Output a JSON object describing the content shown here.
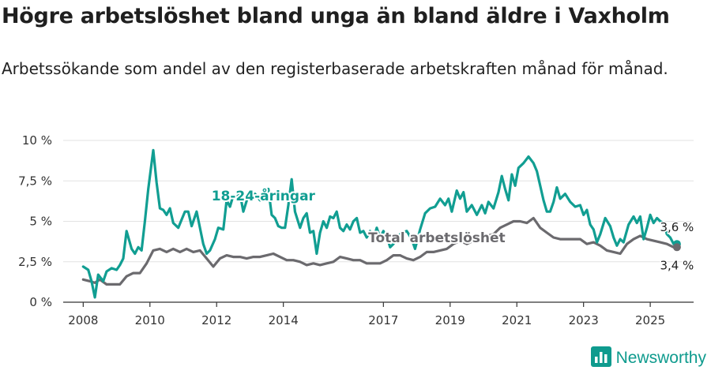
{
  "header": {
    "title": "Högre arbetslöshet bland unga än bland äldre i Vaxholm",
    "subtitle": "Arbetssökande som andel av den registerbaserade arbetskraften månad för månad."
  },
  "brand": {
    "name": "Newsworthy",
    "icon": "bar-chart-logo-icon"
  },
  "colors": {
    "youth": "#119e92",
    "total": "#6b6a6e",
    "grid": "#e2e2e2",
    "axis": "#333333"
  },
  "chart_data": {
    "type": "line",
    "title": "Högre arbetslöshet bland unga än bland äldre i Vaxholm",
    "subtitle": "Arbetssökande som andel av den registerbaserade arbetskraften månad för månad.",
    "xlim": [
      2007.4,
      2026.3
    ],
    "ylim": [
      0,
      10
    ],
    "yticks": [
      0,
      2.5,
      5,
      7.5,
      10
    ],
    "ytick_labels": [
      "0 %",
      "2,5 %",
      "5 %",
      "7,5 %",
      "10 %"
    ],
    "xticks": [
      2008,
      2010,
      2012,
      2014,
      2017,
      2019,
      2021,
      2023,
      2025
    ],
    "xtick_labels": [
      "2008",
      "2010",
      "2012",
      "2014",
      "2017",
      "2019",
      "2021",
      "2023",
      "2025"
    ],
    "grid": "horizontal",
    "series": [
      {
        "name": "18-24-åringar",
        "label_x": 2013.4,
        "label_y": 6.3,
        "end_label": "3,6 %",
        "points": [
          [
            2008.0,
            2.2
          ],
          [
            2008.15,
            2.0
          ],
          [
            2008.25,
            1.3
          ],
          [
            2008.35,
            0.3
          ],
          [
            2008.45,
            1.7
          ],
          [
            2008.6,
            1.3
          ],
          [
            2008.7,
            1.9
          ],
          [
            2008.85,
            2.1
          ],
          [
            2009.0,
            2.0
          ],
          [
            2009.1,
            2.3
          ],
          [
            2009.2,
            2.7
          ],
          [
            2009.3,
            4.4
          ],
          [
            2009.45,
            3.3
          ],
          [
            2009.55,
            3.0
          ],
          [
            2009.65,
            3.4
          ],
          [
            2009.75,
            3.2
          ],
          [
            2009.85,
            5.0
          ],
          [
            2009.95,
            7.0
          ],
          [
            2010.1,
            9.4
          ],
          [
            2010.2,
            7.4
          ],
          [
            2010.3,
            5.8
          ],
          [
            2010.4,
            5.7
          ],
          [
            2010.5,
            5.4
          ],
          [
            2010.6,
            5.8
          ],
          [
            2010.7,
            4.9
          ],
          [
            2010.85,
            4.6
          ],
          [
            2010.95,
            5.1
          ],
          [
            2011.05,
            5.6
          ],
          [
            2011.15,
            5.6
          ],
          [
            2011.25,
            4.7
          ],
          [
            2011.4,
            5.6
          ],
          [
            2011.5,
            4.6
          ],
          [
            2011.6,
            3.6
          ],
          [
            2011.7,
            3.0
          ],
          [
            2011.8,
            3.2
          ],
          [
            2011.95,
            3.9
          ],
          [
            2012.05,
            4.6
          ],
          [
            2012.2,
            4.5
          ],
          [
            2012.3,
            6.3
          ],
          [
            2012.4,
            5.9
          ],
          [
            2012.5,
            6.6
          ],
          [
            2012.6,
            6.5
          ],
          [
            2012.7,
            6.7
          ],
          [
            2012.8,
            5.6
          ],
          [
            2012.95,
            6.6
          ],
          [
            2013.05,
            6.4
          ],
          [
            2013.15,
            6.7
          ],
          [
            2013.3,
            6.3
          ],
          [
            2013.45,
            6.9
          ],
          [
            2013.55,
            7.0
          ],
          [
            2013.65,
            5.4
          ],
          [
            2013.75,
            5.2
          ],
          [
            2013.85,
            4.7
          ],
          [
            2013.95,
            4.6
          ],
          [
            2014.05,
            4.6
          ],
          [
            2014.15,
            6.0
          ],
          [
            2014.25,
            7.6
          ],
          [
            2014.35,
            5.6
          ],
          [
            2014.5,
            4.6
          ],
          [
            2014.6,
            5.2
          ],
          [
            2014.7,
            5.5
          ],
          [
            2014.8,
            4.3
          ],
          [
            2014.9,
            4.4
          ],
          [
            2015.0,
            3.0
          ],
          [
            2015.1,
            4.3
          ],
          [
            2015.2,
            5.0
          ],
          [
            2015.3,
            4.6
          ],
          [
            2015.4,
            5.3
          ],
          [
            2015.5,
            5.2
          ],
          [
            2015.6,
            5.6
          ],
          [
            2015.7,
            4.6
          ],
          [
            2015.8,
            4.4
          ],
          [
            2015.9,
            4.8
          ],
          [
            2016.0,
            4.5
          ],
          [
            2016.1,
            5.0
          ],
          [
            2016.2,
            5.2
          ],
          [
            2016.3,
            4.3
          ],
          [
            2016.4,
            4.4
          ],
          [
            2016.5,
            4.0
          ],
          [
            2016.6,
            4.4
          ],
          [
            2016.7,
            3.9
          ],
          [
            2016.8,
            4.6
          ],
          [
            2016.9,
            4.0
          ],
          [
            2017.0,
            4.4
          ],
          [
            2017.1,
            4.1
          ],
          [
            2017.2,
            3.4
          ],
          [
            2017.3,
            3.6
          ],
          [
            2017.4,
            4.0
          ],
          [
            2017.55,
            4.3
          ],
          [
            2017.7,
            4.4
          ],
          [
            2017.85,
            3.9
          ],
          [
            2017.95,
            3.3
          ],
          [
            2018.1,
            4.5
          ],
          [
            2018.25,
            5.5
          ],
          [
            2018.4,
            5.8
          ],
          [
            2018.55,
            5.9
          ],
          [
            2018.7,
            6.4
          ],
          [
            2018.85,
            6.0
          ],
          [
            2018.95,
            6.4
          ],
          [
            2019.05,
            5.6
          ],
          [
            2019.2,
            6.9
          ],
          [
            2019.3,
            6.4
          ],
          [
            2019.4,
            6.8
          ],
          [
            2019.5,
            5.6
          ],
          [
            2019.65,
            6.0
          ],
          [
            2019.8,
            5.4
          ],
          [
            2019.95,
            6.0
          ],
          [
            2020.05,
            5.5
          ],
          [
            2020.15,
            6.2
          ],
          [
            2020.3,
            5.8
          ],
          [
            2020.45,
            6.8
          ],
          [
            2020.55,
            7.8
          ],
          [
            2020.65,
            7.0
          ],
          [
            2020.75,
            6.3
          ],
          [
            2020.85,
            7.9
          ],
          [
            2020.95,
            7.2
          ],
          [
            2021.05,
            8.3
          ],
          [
            2021.2,
            8.6
          ],
          [
            2021.35,
            9.0
          ],
          [
            2021.5,
            8.6
          ],
          [
            2021.6,
            8.1
          ],
          [
            2021.7,
            7.2
          ],
          [
            2021.8,
            6.3
          ],
          [
            2021.9,
            5.6
          ],
          [
            2022.0,
            5.6
          ],
          [
            2022.1,
            6.2
          ],
          [
            2022.2,
            7.1
          ],
          [
            2022.3,
            6.4
          ],
          [
            2022.45,
            6.7
          ],
          [
            2022.6,
            6.2
          ],
          [
            2022.75,
            5.9
          ],
          [
            2022.9,
            6.0
          ],
          [
            2023.0,
            5.4
          ],
          [
            2023.1,
            5.7
          ],
          [
            2023.2,
            4.8
          ],
          [
            2023.3,
            4.5
          ],
          [
            2023.4,
            3.7
          ],
          [
            2023.5,
            4.2
          ],
          [
            2023.65,
            5.2
          ],
          [
            2023.8,
            4.7
          ],
          [
            2023.9,
            4.0
          ],
          [
            2024.0,
            3.5
          ],
          [
            2024.1,
            3.9
          ],
          [
            2024.2,
            3.7
          ],
          [
            2024.35,
            4.8
          ],
          [
            2024.5,
            5.3
          ],
          [
            2024.6,
            4.9
          ],
          [
            2024.7,
            5.3
          ],
          [
            2024.8,
            3.9
          ],
          [
            2024.9,
            4.6
          ],
          [
            2025.0,
            5.4
          ],
          [
            2025.1,
            4.9
          ],
          [
            2025.2,
            5.2
          ],
          [
            2025.3,
            5.0
          ],
          [
            2025.4,
            4.9
          ],
          [
            2025.5,
            4.2
          ],
          [
            2025.6,
            4.0
          ],
          [
            2025.7,
            3.6
          ],
          [
            2025.8,
            3.6
          ]
        ]
      },
      {
        "name": "Total arbetslöshet",
        "label_x": 2018.6,
        "label_y": 3.7,
        "end_label": "3,4 %",
        "points": [
          [
            2008.0,
            1.4
          ],
          [
            2008.2,
            1.3
          ],
          [
            2008.35,
            1.2
          ],
          [
            2008.5,
            1.4
          ],
          [
            2008.7,
            1.1
          ],
          [
            2008.9,
            1.1
          ],
          [
            2009.1,
            1.1
          ],
          [
            2009.3,
            1.6
          ],
          [
            2009.5,
            1.8
          ],
          [
            2009.7,
            1.8
          ],
          [
            2009.9,
            2.4
          ],
          [
            2010.1,
            3.2
          ],
          [
            2010.3,
            3.3
          ],
          [
            2010.5,
            3.1
          ],
          [
            2010.7,
            3.3
          ],
          [
            2010.9,
            3.1
          ],
          [
            2011.1,
            3.3
          ],
          [
            2011.3,
            3.1
          ],
          [
            2011.5,
            3.2
          ],
          [
            2011.7,
            2.7
          ],
          [
            2011.9,
            2.2
          ],
          [
            2012.1,
            2.7
          ],
          [
            2012.3,
            2.9
          ],
          [
            2012.5,
            2.8
          ],
          [
            2012.7,
            2.8
          ],
          [
            2012.9,
            2.7
          ],
          [
            2013.1,
            2.8
          ],
          [
            2013.3,
            2.8
          ],
          [
            2013.5,
            2.9
          ],
          [
            2013.7,
            3.0
          ],
          [
            2013.9,
            2.8
          ],
          [
            2014.1,
            2.6
          ],
          [
            2014.3,
            2.6
          ],
          [
            2014.5,
            2.5
          ],
          [
            2014.7,
            2.3
          ],
          [
            2014.9,
            2.4
          ],
          [
            2015.1,
            2.3
          ],
          [
            2015.3,
            2.4
          ],
          [
            2015.5,
            2.5
          ],
          [
            2015.7,
            2.8
          ],
          [
            2015.9,
            2.7
          ],
          [
            2016.1,
            2.6
          ],
          [
            2016.3,
            2.6
          ],
          [
            2016.5,
            2.4
          ],
          [
            2016.7,
            2.4
          ],
          [
            2016.9,
            2.4
          ],
          [
            2017.1,
            2.6
          ],
          [
            2017.3,
            2.9
          ],
          [
            2017.5,
            2.9
          ],
          [
            2017.7,
            2.7
          ],
          [
            2017.9,
            2.6
          ],
          [
            2018.1,
            2.8
          ],
          [
            2018.3,
            3.1
          ],
          [
            2018.5,
            3.1
          ],
          [
            2018.7,
            3.2
          ],
          [
            2018.9,
            3.3
          ],
          [
            2019.1,
            3.6
          ],
          [
            2019.3,
            3.8
          ],
          [
            2019.5,
            3.6
          ],
          [
            2019.7,
            3.8
          ],
          [
            2019.9,
            4.0
          ],
          [
            2020.1,
            4.1
          ],
          [
            2020.3,
            4.2
          ],
          [
            2020.5,
            4.6
          ],
          [
            2020.7,
            4.8
          ],
          [
            2020.9,
            5.0
          ],
          [
            2021.1,
            5.0
          ],
          [
            2021.3,
            4.9
          ],
          [
            2021.5,
            5.2
          ],
          [
            2021.7,
            4.6
          ],
          [
            2021.9,
            4.3
          ],
          [
            2022.1,
            4.0
          ],
          [
            2022.3,
            3.9
          ],
          [
            2022.5,
            3.9
          ],
          [
            2022.7,
            3.9
          ],
          [
            2022.9,
            3.9
          ],
          [
            2023.1,
            3.6
          ],
          [
            2023.3,
            3.7
          ],
          [
            2023.5,
            3.5
          ],
          [
            2023.7,
            3.2
          ],
          [
            2023.9,
            3.1
          ],
          [
            2024.1,
            3.0
          ],
          [
            2024.3,
            3.6
          ],
          [
            2024.5,
            3.9
          ],
          [
            2024.7,
            4.1
          ],
          [
            2024.9,
            3.9
          ],
          [
            2025.1,
            3.8
          ],
          [
            2025.3,
            3.7
          ],
          [
            2025.5,
            3.6
          ],
          [
            2025.7,
            3.4
          ],
          [
            2025.8,
            3.4
          ]
        ]
      }
    ]
  }
}
